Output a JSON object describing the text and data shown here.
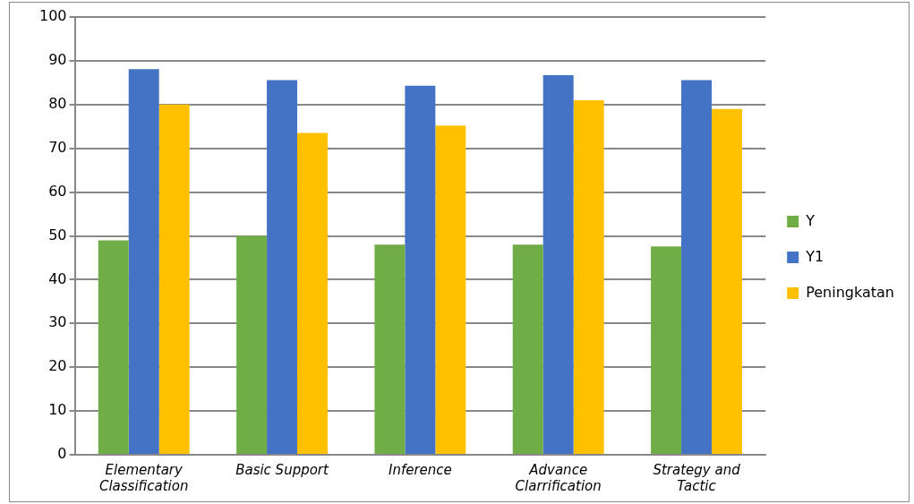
{
  "chart_data": {
    "type": "bar",
    "categories": [
      "Elementary Classification",
      "Basic Support",
      "Inference",
      "Advance Clarrification",
      "Strategy and Tactic"
    ],
    "series": [
      {
        "name": "Y",
        "color": "#70ad47",
        "values": [
          49,
          50,
          48,
          48,
          47.6
        ]
      },
      {
        "name": "Y1",
        "color": "#4472c4",
        "values": [
          88.1,
          85.6,
          84.3,
          86.7,
          85.6
        ]
      },
      {
        "name": "Peningkatan",
        "color": "#ffc000",
        "values": [
          80,
          73.5,
          75.2,
          81,
          79
        ]
      }
    ],
    "ylim": [
      0,
      100
    ],
    "yticks": [
      0,
      10,
      20,
      30,
      40,
      50,
      60,
      70,
      80,
      90,
      100
    ],
    "grid": "y",
    "legend": "right"
  }
}
